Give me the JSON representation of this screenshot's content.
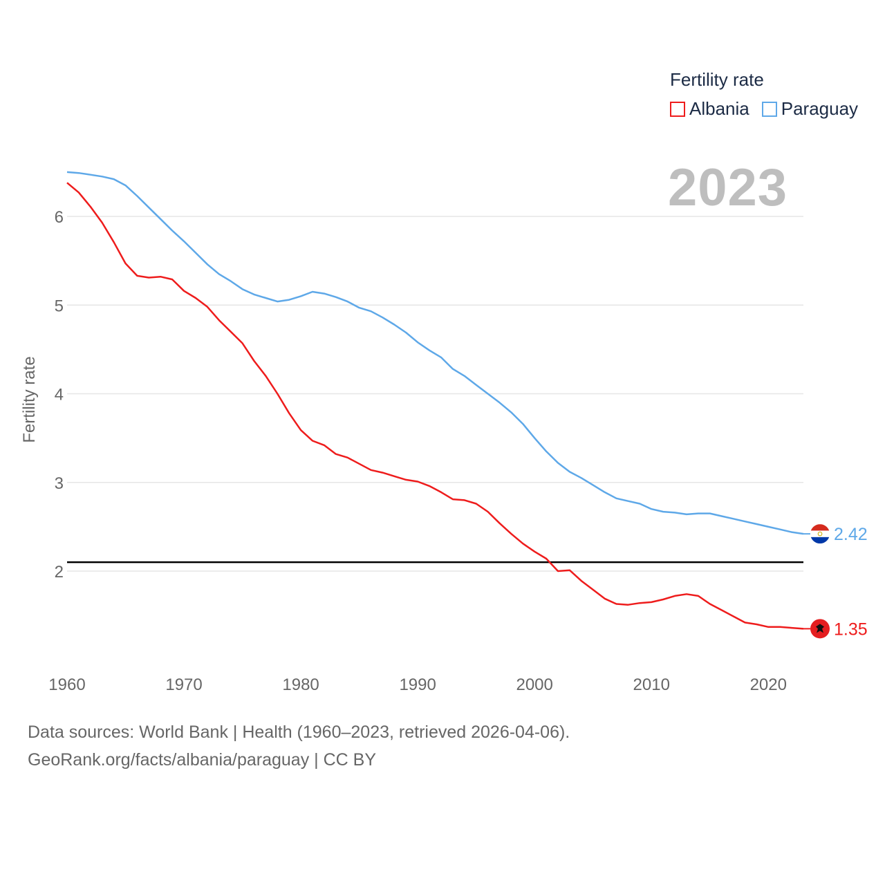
{
  "legend": {
    "title": "Fertility rate",
    "items": [
      {
        "label": "Albania",
        "color": "#ee1c1c"
      },
      {
        "label": "Paraguay",
        "color": "#5ea8e8"
      }
    ]
  },
  "year_label": "2023",
  "source": {
    "line1": "Data sources: World Bank | Health (1960–2023, retrieved 2026-04-06).",
    "line2": "GeoRank.org/facts/albania/paraguay | CC BY"
  },
  "chart_data": {
    "type": "line",
    "title": "Fertility rate",
    "xlabel": "",
    "ylabel": "Fertility rate",
    "xlim": [
      1960,
      2023
    ],
    "ylim": [
      1,
      6.6
    ],
    "x_ticks": [
      1960,
      1970,
      1980,
      1990,
      2000,
      2010,
      2020
    ],
    "y_ticks": [
      2,
      3,
      4,
      5,
      6
    ],
    "grid": true,
    "reference_line": {
      "y": 2.1,
      "color": "#000000"
    },
    "x": [
      1960,
      1961,
      1962,
      1963,
      1964,
      1965,
      1966,
      1967,
      1968,
      1969,
      1970,
      1971,
      1972,
      1973,
      1974,
      1975,
      1976,
      1977,
      1978,
      1979,
      1980,
      1981,
      1982,
      1983,
      1984,
      1985,
      1986,
      1987,
      1988,
      1989,
      1990,
      1991,
      1992,
      1993,
      1994,
      1995,
      1996,
      1997,
      1998,
      1999,
      2000,
      2001,
      2002,
      2003,
      2004,
      2005,
      2006,
      2007,
      2008,
      2009,
      2010,
      2011,
      2012,
      2013,
      2014,
      2015,
      2016,
      2017,
      2018,
      2019,
      2020,
      2021,
      2022,
      2023
    ],
    "series": [
      {
        "name": "Albania",
        "color": "#ee1c1c",
        "end_label": "1.35",
        "values": [
          6.38,
          6.27,
          6.11,
          5.93,
          5.71,
          5.47,
          5.33,
          5.31,
          5.32,
          5.29,
          5.16,
          5.08,
          4.98,
          4.83,
          4.7,
          4.57,
          4.37,
          4.2,
          4.0,
          3.78,
          3.59,
          3.47,
          3.42,
          3.32,
          3.28,
          3.21,
          3.14,
          3.11,
          3.07,
          3.03,
          3.01,
          2.96,
          2.89,
          2.81,
          2.8,
          2.76,
          2.67,
          2.54,
          2.42,
          2.31,
          2.22,
          2.14,
          2.0,
          2.01,
          1.89,
          1.79,
          1.69,
          1.63,
          1.62,
          1.64,
          1.65,
          1.68,
          1.72,
          1.74,
          1.72,
          1.63,
          1.56,
          1.49,
          1.42,
          1.4,
          1.37,
          1.37,
          1.36,
          1.35
        ]
      },
      {
        "name": "Paraguay",
        "color": "#5ea8e8",
        "end_label": "2.42",
        "values": [
          6.5,
          6.49,
          6.47,
          6.45,
          6.42,
          6.35,
          6.23,
          6.1,
          5.97,
          5.84,
          5.72,
          5.59,
          5.46,
          5.35,
          5.27,
          5.18,
          5.12,
          5.08,
          5.04,
          5.06,
          5.1,
          5.15,
          5.13,
          5.09,
          5.04,
          4.97,
          4.93,
          4.86,
          4.78,
          4.69,
          4.58,
          4.49,
          4.41,
          4.28,
          4.2,
          4.1,
          4.0,
          3.9,
          3.79,
          3.66,
          3.5,
          3.35,
          3.22,
          3.12,
          3.05,
          2.97,
          2.89,
          2.82,
          2.79,
          2.76,
          2.7,
          2.67,
          2.66,
          2.64,
          2.65,
          2.65,
          2.62,
          2.59,
          2.56,
          2.53,
          2.5,
          2.47,
          2.44,
          2.42
        ]
      }
    ]
  }
}
